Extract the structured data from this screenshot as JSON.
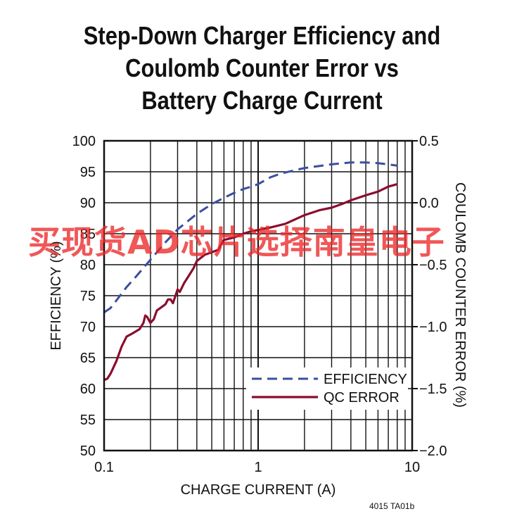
{
  "title_lines": [
    "Step-Down Charger Efficiency and",
    "Coulomb Counter Error vs",
    "Battery Charge Current"
  ],
  "figure_note": "4015 TA01b",
  "watermark": "买现货AD芯片选择南皇电子",
  "colors": {
    "efficiency": "#3a4fa0",
    "qc_error": "#8b0d2e",
    "grid": "#111111",
    "watermark": "#ec2828"
  },
  "chart_data": {
    "type": "line",
    "xlabel": "CHARGE CURRENT (A)",
    "ylabel_left": "EFFICIENCY (%)",
    "ylabel_right": "COULOMB COUNTER ERROR (%)",
    "x_scale": "log",
    "xlim": [
      0.1,
      10
    ],
    "ylim_left": [
      50,
      100
    ],
    "ylim_right": [
      -2.0,
      0.5
    ],
    "x_ticks": [
      "0.1",
      "1",
      "10"
    ],
    "y_ticks_left": [
      "50",
      "55",
      "60",
      "65",
      "70",
      "75",
      "80",
      "85",
      "90",
      "95",
      "100"
    ],
    "y_ticks_right": [
      "0.5",
      "0.0",
      "−0.5",
      "−1.0",
      "−1.5",
      "−2.0"
    ],
    "grid": true,
    "legend": {
      "placement": "bottom-right",
      "entries": [
        "EFFICIENCY",
        "QC ERROR"
      ]
    },
    "series": [
      {
        "name": "EFFICIENCY",
        "axis": "left",
        "style": "dashed",
        "points": [
          [
            0.1,
            72.3
          ],
          [
            0.11,
            73.0
          ],
          [
            0.12,
            74.2
          ],
          [
            0.14,
            76.4
          ],
          [
            0.16,
            78.0
          ],
          [
            0.2,
            80.8
          ],
          [
            0.25,
            83.6
          ],
          [
            0.3,
            85.7
          ],
          [
            0.4,
            88.2
          ],
          [
            0.5,
            89.8
          ],
          [
            0.6,
            90.8
          ],
          [
            0.7,
            91.6
          ],
          [
            0.8,
            92.2
          ],
          [
            0.9,
            92.6
          ],
          [
            1.0,
            93.0
          ],
          [
            1.2,
            94.1
          ],
          [
            1.4,
            94.7
          ],
          [
            1.7,
            95.2
          ],
          [
            2.0,
            95.6
          ],
          [
            3.0,
            96.2
          ],
          [
            4.0,
            96.5
          ],
          [
            5.0,
            96.5
          ],
          [
            6.0,
            96.4
          ],
          [
            8.0,
            96.0
          ]
        ]
      },
      {
        "name": "QC ERROR",
        "axis": "right",
        "style": "solid",
        "points": [
          [
            0.1,
            -1.43
          ],
          [
            0.105,
            -1.42
          ],
          [
            0.11,
            -1.38
          ],
          [
            0.12,
            -1.28
          ],
          [
            0.13,
            -1.16
          ],
          [
            0.14,
            -1.08
          ],
          [
            0.15,
            -1.06
          ],
          [
            0.16,
            -1.04
          ],
          [
            0.17,
            -1.02
          ],
          [
            0.18,
            -0.97
          ],
          [
            0.185,
            -0.91
          ],
          [
            0.19,
            -0.92
          ],
          [
            0.2,
            -0.97
          ],
          [
            0.21,
            -0.94
          ],
          [
            0.22,
            -0.87
          ],
          [
            0.25,
            -0.82
          ],
          [
            0.26,
            -0.78
          ],
          [
            0.27,
            -0.78
          ],
          [
            0.28,
            -0.81
          ],
          [
            0.3,
            -0.7
          ],
          [
            0.31,
            -0.72
          ],
          [
            0.33,
            -0.65
          ],
          [
            0.35,
            -0.6
          ],
          [
            0.38,
            -0.53
          ],
          [
            0.4,
            -0.47
          ],
          [
            0.45,
            -0.42
          ],
          [
            0.5,
            -0.4
          ],
          [
            0.55,
            -0.38
          ],
          [
            0.6,
            -0.3
          ],
          [
            0.7,
            -0.28
          ],
          [
            0.8,
            -0.25
          ],
          [
            0.9,
            -0.23
          ],
          [
            1.0,
            -0.22
          ],
          [
            1.2,
            -0.2
          ],
          [
            1.5,
            -0.17
          ],
          [
            2.0,
            -0.1
          ],
          [
            2.5,
            -0.06
          ],
          [
            3.0,
            -0.04
          ],
          [
            3.5,
            -0.01
          ],
          [
            4.0,
            0.02
          ],
          [
            5.0,
            0.06
          ],
          [
            6.0,
            0.09
          ],
          [
            7.0,
            0.13
          ],
          [
            8.0,
            0.15
          ]
        ]
      }
    ]
  }
}
